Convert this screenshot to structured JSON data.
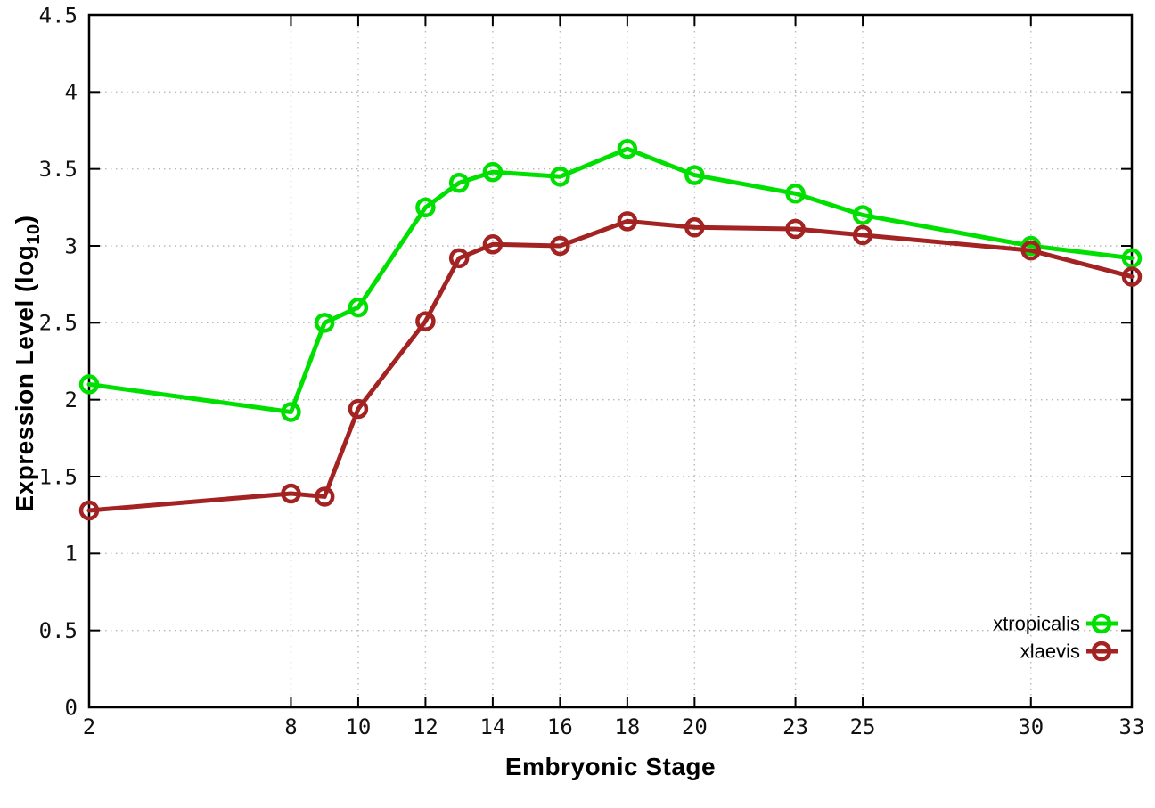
{
  "chart_data": {
    "type": "line",
    "title": "",
    "xlabel": "Embryonic Stage",
    "ylabel": "Expression Level (log10)",
    "ylabel_parts": {
      "prefix": "Expression Level (log",
      "subscript": "10",
      "suffix": ")"
    },
    "xlim": [
      2,
      33
    ],
    "ylim": [
      0,
      4.5
    ],
    "grid": true,
    "legend_position": "bottom-right",
    "xticks": {
      "values": [
        2,
        8,
        10,
        12,
        14,
        16,
        18,
        20,
        23,
        25,
        30,
        33
      ],
      "labels": [
        "2",
        "8",
        "10",
        "12",
        "14",
        "16",
        "18",
        "20",
        "23",
        "25",
        "30",
        "33"
      ]
    },
    "yticks": {
      "values": [
        0,
        0.5,
        1,
        1.5,
        2,
        2.5,
        3,
        3.5,
        4,
        4.5
      ],
      "labels": [
        "0",
        "0.5",
        "1",
        "1.5",
        "2",
        "2.5",
        "3",
        "3.5",
        "4",
        "4.5"
      ]
    },
    "x": [
      2,
      8,
      9,
      10,
      12,
      13,
      14,
      16,
      18,
      20,
      23,
      25,
      30,
      33
    ],
    "series": [
      {
        "name": "xtropicalis",
        "color": "#00e000",
        "values": [
          2.1,
          1.92,
          2.5,
          2.6,
          3.25,
          3.41,
          3.48,
          3.45,
          3.63,
          3.46,
          3.34,
          3.2,
          3.0,
          2.92
        ]
      },
      {
        "name": "xlaevis",
        "color": "#a32222",
        "values": [
          1.28,
          1.39,
          1.37,
          1.94,
          2.51,
          2.92,
          3.01,
          3.0,
          3.16,
          3.12,
          3.11,
          3.07,
          2.97,
          2.8
        ]
      }
    ],
    "colors": {
      "border": "#000000",
      "grid": "#b8b8b8",
      "background": "#ffffff"
    }
  }
}
